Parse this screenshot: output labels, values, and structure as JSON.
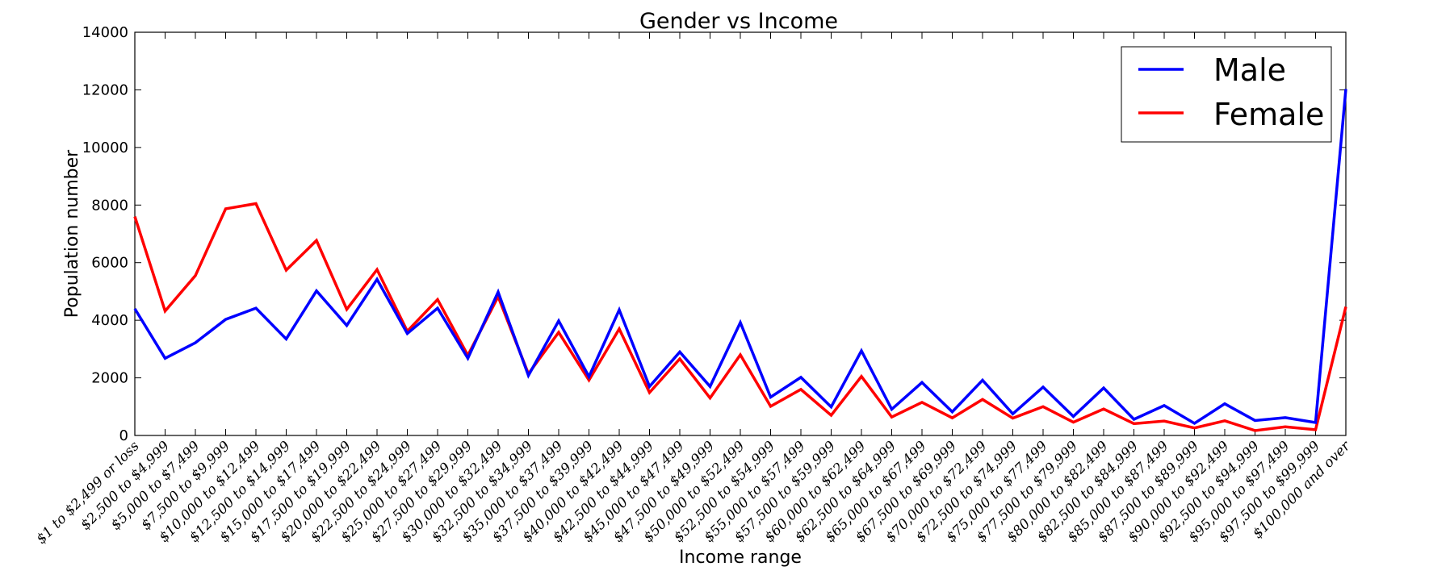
{
  "chart_data": {
    "type": "line",
    "title": "Gender vs Income",
    "xlabel": "Income range",
    "ylabel": "Population number",
    "ylim": [
      0,
      14000
    ],
    "yticks": [
      "0",
      "2000",
      "4000",
      "6000",
      "8000",
      "10000",
      "12000",
      "14000"
    ],
    "grid": false,
    "legend_position": "top-right",
    "categories": [
      "$1 to $2,499 or loss",
      "$2,500 to $4,999",
      "$5,000 to $7,499",
      "$7,500 to $9,999",
      "$10,000 to $12,499",
      "$12,500 to $14,999",
      "$15,000 to $17,499",
      "$17,500 to $19,999",
      "$20,000 to $22,499",
      "$22,500 to $24,999",
      "$25,000 to $27,499",
      "$27,500 to $29,999",
      "$30,000 to $32,499",
      "$32,500 to $34,999",
      "$35,000 to $37,499",
      "$37,500 to $39,999",
      "$40,000 to $42,499",
      "$42,500 to $44,999",
      "$45,000 to $47,499",
      "$47,500 to $49,999",
      "$50,000 to $52,499",
      "$52,500 to $54,999",
      "$55,000 to $57,499",
      "$57,500 to $59,999",
      "$60,000 to $62,499",
      "$62,500 to $64,999",
      "$65,000 to $67,499",
      "$67,500 to $69,999",
      "$70,000 to $72,499",
      "$72,500 to $74,999",
      "$75,000 to $77,499",
      "$77,500 to $79,999",
      "$80,000 to $82,499",
      "$82,500 to $84,999",
      "$85,000 to $87,499",
      "$87,500 to $89,999",
      "$90,000 to $92,499",
      "$92,500 to $94,999",
      "$95,000 to $97,499",
      "$97,500 to $99,999",
      "$100,000 and over"
    ],
    "series": [
      {
        "name": "Male",
        "color": "#0000ff",
        "values": [
          4400,
          2680,
          3220,
          4030,
          4420,
          3350,
          5020,
          3820,
          5420,
          3540,
          4420,
          2680,
          4980,
          2080,
          3980,
          2040,
          4360,
          1700,
          2900,
          1700,
          3920,
          1330,
          2020,
          990,
          2940,
          910,
          1840,
          820,
          1920,
          750,
          1680,
          660,
          1650,
          560,
          1040,
          420,
          1100,
          520,
          620,
          450,
          12030
        ]
      },
      {
        "name": "Female",
        "color": "#ff0000",
        "values": [
          7600,
          4320,
          5550,
          7870,
          8050,
          5740,
          6770,
          4380,
          5760,
          3620,
          4720,
          2780,
          4820,
          2140,
          3580,
          1920,
          3700,
          1490,
          2660,
          1300,
          2800,
          1010,
          1600,
          700,
          2050,
          640,
          1150,
          610,
          1250,
          600,
          1000,
          460,
          920,
          410,
          500,
          260,
          510,
          170,
          300,
          200,
          4470
        ]
      }
    ]
  }
}
